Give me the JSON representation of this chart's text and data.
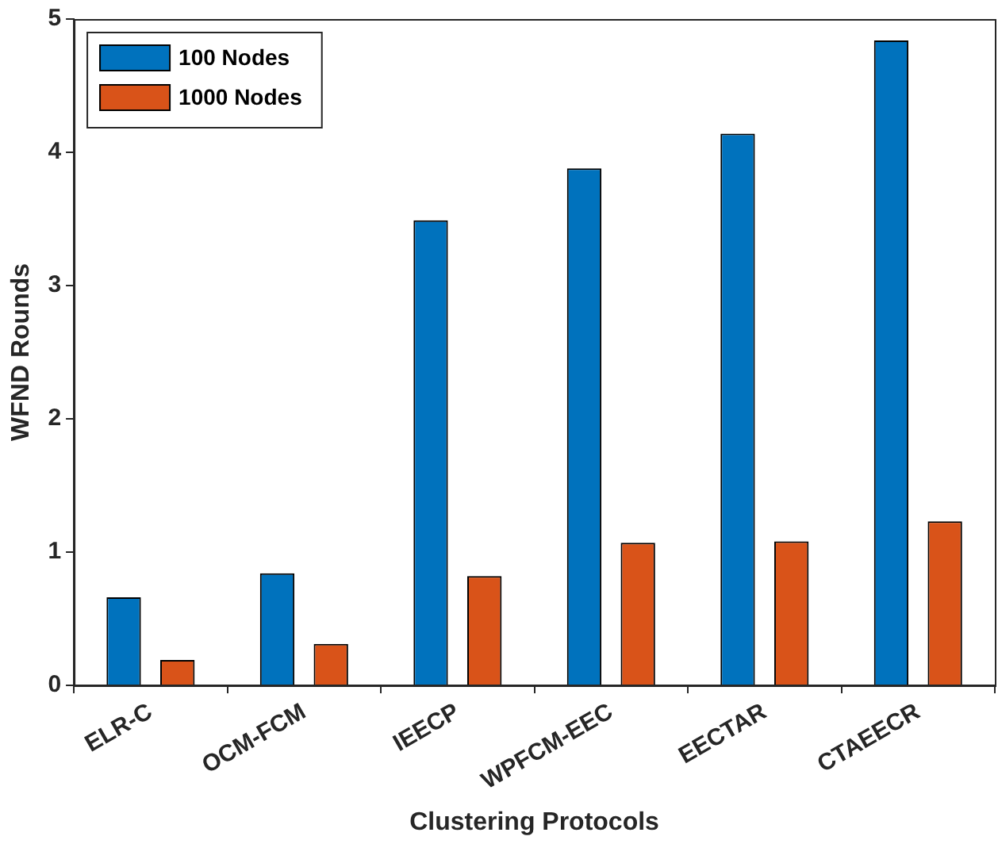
{
  "chart_data": {
    "type": "bar",
    "xlabel": "Clustering Protocols",
    "ylabel": "WFND Rounds",
    "categories": [
      "ELR-C",
      "OCM-FCM",
      "IEECP",
      "WPFCM-EEC",
      "EECTAR",
      "CTAEECR"
    ],
    "series": [
      {
        "name": "100 Nodes",
        "color": "#0072bd",
        "values": [
          0.66,
          0.84,
          3.49,
          3.88,
          4.14,
          4.84
        ]
      },
      {
        "name": "1000 Nodes",
        "color": "#d95319",
        "values": [
          0.19,
          0.31,
          0.82,
          1.07,
          1.08,
          1.23
        ]
      }
    ],
    "ylim": [
      0,
      5
    ],
    "yticks": [
      0,
      1,
      2,
      3,
      4,
      5
    ],
    "grid": false,
    "legend": "top left"
  }
}
